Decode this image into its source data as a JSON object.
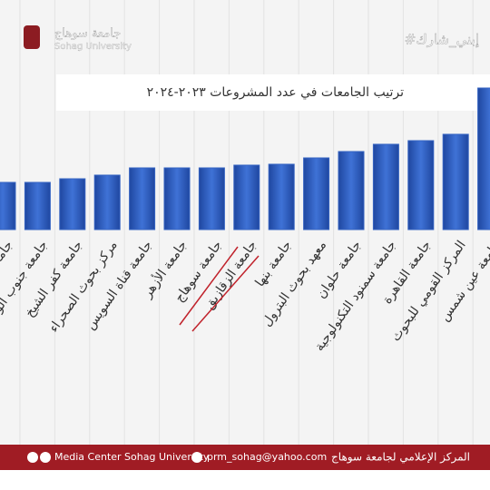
{
  "header": {
    "logo_ar": "جامعة سوهاج",
    "logo_en": "Sohag University",
    "hashtag": "#إبني_شارك"
  },
  "chart_data": {
    "type": "bar",
    "title": "ترتيب الجامعات في عدد المشروعات ٢٠٢٣-٢٠٢٤",
    "categories": [
      "جامعة بني سويف",
      "جامعة جنوب الوادي",
      "جامعة كفر الشيخ",
      "مركز بحوث الصحراء",
      "جامعة قناة السويس",
      "جامعة الأزهر",
      "جامعة سوهاج",
      "جامعة الزقازيق",
      "جامعة بنها",
      "معهد بحوث البترول",
      "جامعة حلوان",
      "جامعة سمنود التكنولوجية",
      "جامعة القاهرة",
      "المركز القومي للبحوث",
      "جامعة عين شمس"
    ],
    "values": [
      52,
      52,
      56,
      60,
      68,
      68,
      68,
      71,
      72,
      79,
      86,
      94,
      98,
      105,
      156
    ],
    "color": "#3563c2"
  },
  "footer": {
    "facebook": "Media Center Sohag University",
    "email": "prm_sohag@yahoo.com",
    "center": "المركز الإعلامي لجامعة سوهاج"
  }
}
